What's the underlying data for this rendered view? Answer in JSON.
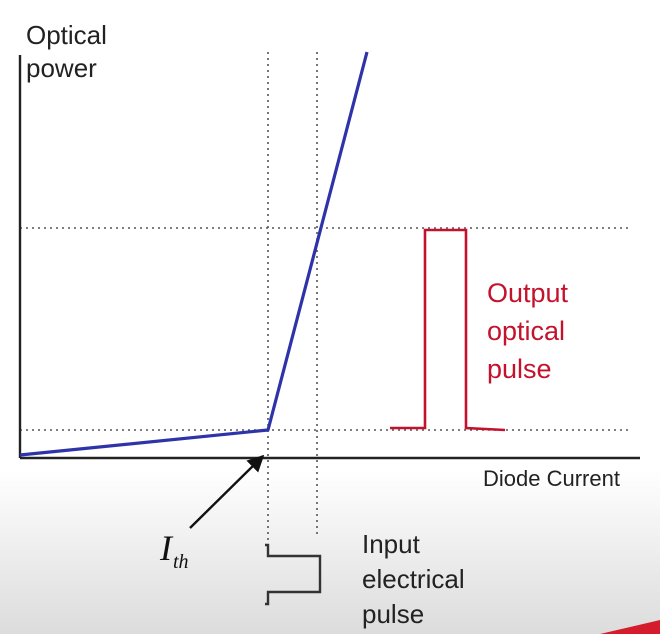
{
  "colors": {
    "curve": "#2f33a8",
    "output_pulse": "#c4122c",
    "axis": "#222222",
    "guide": "#555555"
  },
  "labels": {
    "y_axis_line1": "Optical",
    "y_axis_line2": "power",
    "x_axis": "Diode Current",
    "threshold_main": "I",
    "threshold_sub": "th",
    "output_line1": "Output",
    "output_line2": "optical",
    "output_line3": "pulse",
    "input_line1": "Input",
    "input_line2": "electrical",
    "input_line3": "pulse"
  },
  "icons": {
    "threshold_arrow": "arrow-up-right-icon"
  }
}
